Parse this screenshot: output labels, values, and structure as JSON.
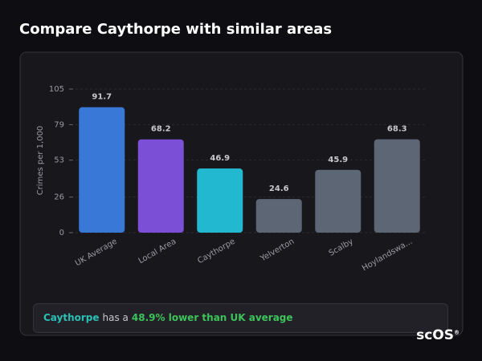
{
  "chart_data": {
    "type": "bar",
    "title": "Compare Caythorpe with similar areas",
    "y_label": "Crimes per 1,000",
    "categories": [
      "UK Average",
      "Local Area",
      "Caythorpe",
      "Yelverton",
      "Scalby",
      "Hoylandswa..."
    ],
    "values": [
      91.7,
      68.2,
      46.9,
      24.6,
      45.9,
      68.3
    ],
    "colors": [
      "#3a78d8",
      "#7b4fd6",
      "#22b8d0",
      "#5c6674",
      "#5c6674",
      "#5c6674"
    ],
    "ylim": [
      0,
      105
    ],
    "yticks": [
      0,
      26,
      53,
      79,
      105
    ],
    "grid": true
  },
  "summary": {
    "area": "Caythorpe",
    "text": "has a",
    "highlight": "48.9% lower than UK average"
  },
  "logo": {
    "text": "scOS",
    "mark": "®"
  }
}
